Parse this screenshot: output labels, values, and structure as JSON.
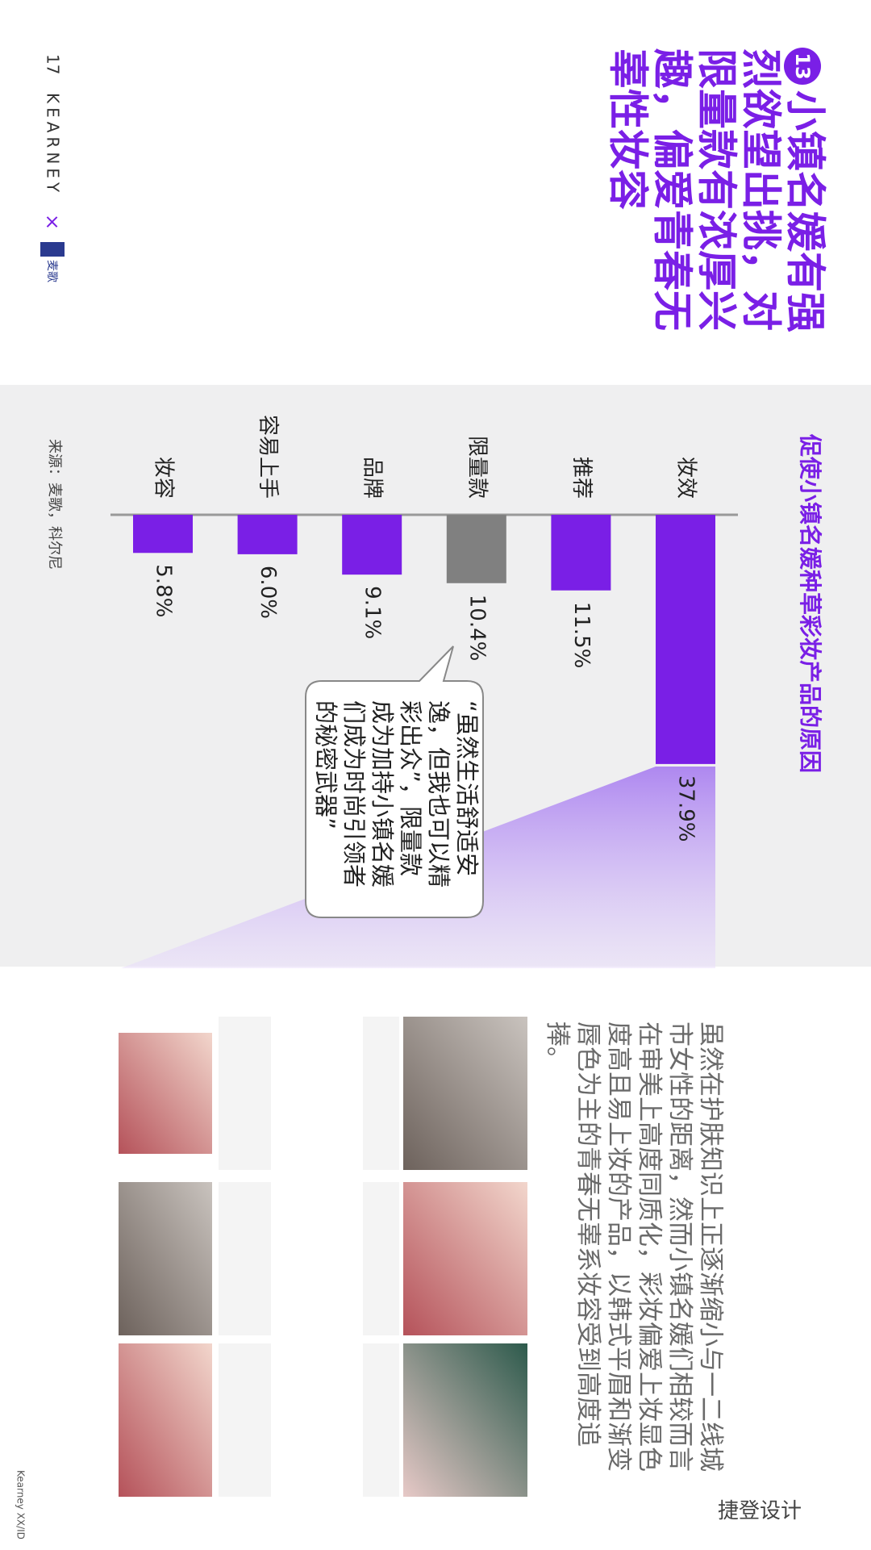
{
  "header": {
    "page_number": "17",
    "brand": "KEARNEY",
    "separator": "×",
    "partner": "麦歌"
  },
  "title": {
    "badge": "13",
    "lines": [
      "小镇名媛有强",
      "烈欲望出挑，对",
      "限量款有浓厚兴",
      "趣，偏爱青春无",
      "辜性妆容"
    ]
  },
  "chart_data": {
    "type": "bar",
    "orientation": "horizontal",
    "title": "促使小镇名媛种草彩妆产品的原因",
    "categories": [
      "妆效",
      "推荐",
      "限量款",
      "品牌",
      "容易上手",
      "妆容"
    ],
    "values": [
      37.9,
      11.5,
      10.4,
      9.1,
      6.0,
      5.8
    ],
    "value_labels": [
      "37.9%",
      "11.5%",
      "10.4%",
      "9.1%",
      "6.0%",
      "5.8%"
    ],
    "colors": [
      "#7a1fe6",
      "#7a1fe6",
      "#808080",
      "#7a1fe6",
      "#7a1fe6",
      "#7a1fe6"
    ],
    "xlim": [
      0,
      40
    ],
    "source": "来源：麦歌，科尔尼"
  },
  "callout": {
    "lines": [
      "“虽然生活舒适安",
      "逸，但我也可以精",
      "彩出众”，限量款",
      "成为加持小镇名媛",
      "们成为时尚引领者",
      "的秘密武器”"
    ]
  },
  "body": {
    "text": "虽然在护肤知识上正逐渐缩小与一二线城市女性的距离，然而小镇名媛们相较而言在审美上高度同质化，彩妆偏爱上妆显色度高且易上妆的产品，以韩式平眉和渐变唇色为主的青春无辜系妆容受到高度追捧。"
  },
  "footer": {
    "text": "Kearney XX/ID"
  },
  "watermark": {
    "text": "捷登设计"
  }
}
